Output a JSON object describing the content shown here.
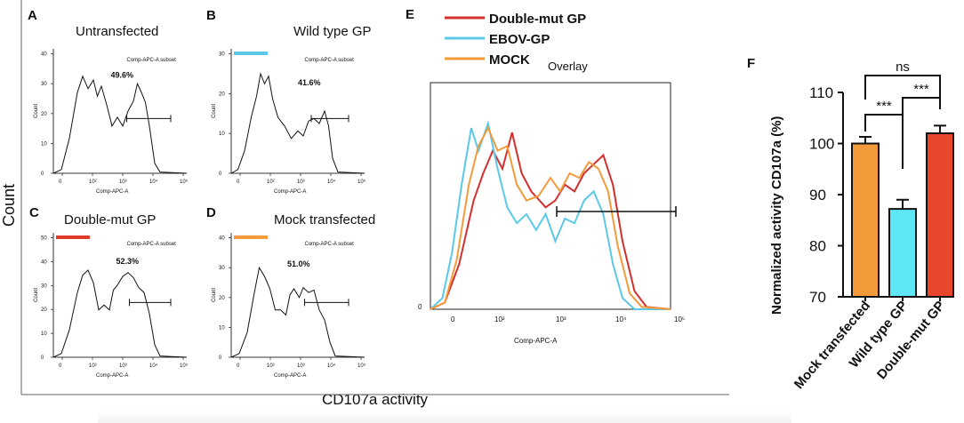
{
  "figure": {
    "ylabel": "Count",
    "xlabel": "CD107a activity"
  },
  "panels": [
    {
      "letter": "A",
      "title": "Untransfected",
      "gate_label": "Comp-APC-A subset",
      "percent": "49.6%",
      "legend_color": "",
      "xaxis": "Comp-APC-A",
      "ymax": 40,
      "yticks": [
        "0",
        "10",
        "20",
        "30",
        "40"
      ]
    },
    {
      "letter": "B",
      "title": "Wild type GP",
      "gate_label": "Comp-APC-A subset",
      "percent": "41.6%",
      "legend_color": "#5bc8e8",
      "xaxis": "Comp-APC-A",
      "ymax": 30,
      "yticks": [
        "0",
        "10",
        "20",
        "30"
      ]
    },
    {
      "letter": "C",
      "title": "Double-mut GP",
      "gate_label": "Comp-APC-A subset",
      "percent": "52.3%",
      "legend_color": "#e23b2a",
      "xaxis": "Comp-APC-A",
      "ymax": 50,
      "yticks": [
        "0",
        "10",
        "20",
        "30",
        "40",
        "50"
      ]
    },
    {
      "letter": "D",
      "title": "Mock transfected",
      "gate_label": "Comp-APC-A subset",
      "percent": "51.0%",
      "legend_color": "#f39a3a",
      "xaxis": "Comp-APC-A",
      "ymax": 40,
      "yticks": [
        "0",
        "10",
        "20",
        "30",
        "40"
      ]
    }
  ],
  "overlay": {
    "letter": "E",
    "title": "Overlay",
    "legend": [
      {
        "name": "Double-mut GP",
        "color": "#d42f2f"
      },
      {
        "name": "EBOV-GP",
        "color": "#5bc8e8"
      },
      {
        "name": "MOCK",
        "color": "#f39a3a"
      }
    ],
    "xaxis": "Comp-APC-A",
    "ytick": "0"
  },
  "chart_data": {
    "type": "bar",
    "letter": "F",
    "title": "",
    "categories": [
      "Mock transfected",
      "Wild type GP",
      "Double-mut GP"
    ],
    "values": [
      100,
      87.2,
      102
    ],
    "errors": [
      1.3,
      1.8,
      1.5
    ],
    "colors": [
      "#f39a3a",
      "#5ee8f5",
      "#e8472c"
    ],
    "ylabel": "Normalized activity CD107a (%)",
    "xlabel": "",
    "ylim": [
      70,
      110
    ],
    "yticks": [
      "70",
      "80",
      "90",
      "100",
      "110"
    ],
    "significance": [
      {
        "pair": [
          0,
          1
        ],
        "label": "***"
      },
      {
        "pair": [
          1,
          2
        ],
        "label": "***"
      },
      {
        "pair": [
          0,
          2
        ],
        "label": "ns"
      }
    ]
  }
}
